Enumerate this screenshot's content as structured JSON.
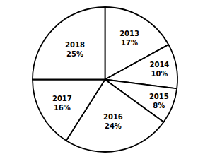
{
  "chart_data": {
    "type": "pie",
    "categories": [
      "2013",
      "2014",
      "2015",
      "2016",
      "2017",
      "2018"
    ],
    "values": [
      17,
      10,
      8,
      24,
      16,
      25
    ],
    "value_labels": [
      "17%",
      "10%",
      "8%",
      "24%",
      "16%",
      "25%"
    ],
    "data_labels": true,
    "colors": [
      "#ffffff",
      "#ffffff",
      "#ffffff",
      "#ffffff",
      "#ffffff",
      "#ffffff"
    ]
  }
}
